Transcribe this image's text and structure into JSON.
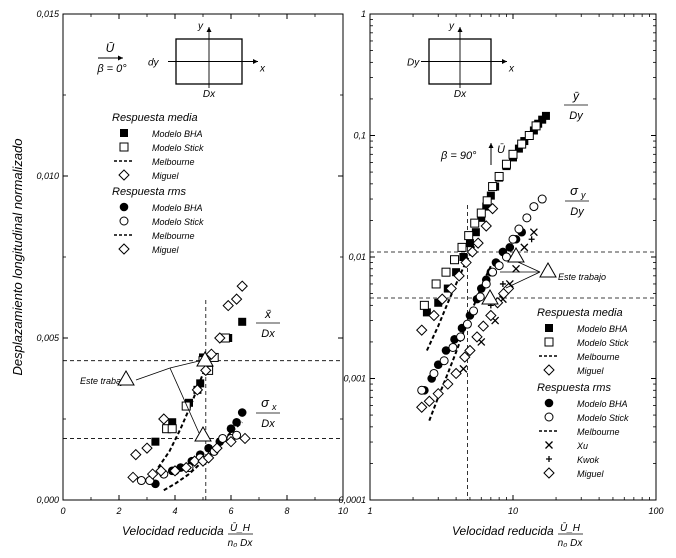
{
  "chart_data": [
    {
      "type": "scatter",
      "xlabel": "Velocidad reducida",
      "xlabel_frac_num": "Ū_H",
      "xlabel_frac_den": "n₀ Dx",
      "ylabel": "Desplazamiento longitudinal normalizado",
      "xlim": [
        0,
        10
      ],
      "ylim": [
        0,
        0.015
      ],
      "x_ticks": [
        "0",
        "2",
        "4",
        "6",
        "8",
        "10"
      ],
      "y_ticks": [
        "0,000",
        "0,005",
        "0,010",
        "0,015"
      ],
      "inset": {
        "wind": "Ū",
        "beta": "β = 0°",
        "dy": "dy",
        "dx": "Dx",
        "x": "x",
        "y": "y"
      },
      "legend_groups": [
        {
          "title": "Respuesta media",
          "entries": [
            {
              "marker": "filled-square",
              "label": "Modelo BHA"
            },
            {
              "marker": "open-square",
              "label": "Modelo Stick"
            },
            {
              "marker": "dashed-line",
              "label": "Melbourne"
            },
            {
              "marker": "open-diamond",
              "label": "Miguel"
            }
          ]
        },
        {
          "title": "Respuesta rms",
          "entries": [
            {
              "marker": "filled-circle",
              "label": "Modelo BHA"
            },
            {
              "marker": "open-circle",
              "label": "Modelo Stick"
            },
            {
              "marker": "dashed-line",
              "label": "Melbourne"
            },
            {
              "marker": "open-diamond",
              "label": "Miguel"
            }
          ]
        }
      ],
      "annotation": "Este trabajo",
      "mean_label": {
        "num": "x̄",
        "den": "Dx"
      },
      "rms_label": {
        "num": "σ",
        "sub": "x",
        "den": "Dx"
      },
      "ref_lines": {
        "x": 5.1,
        "y": [
          0.0043,
          0.0019
        ]
      },
      "series": [
        {
          "group": "mean",
          "marker": "filled-square",
          "name": "Modelo BHA",
          "points": [
            [
              3.3,
              0.0018
            ],
            [
              3.9,
              0.0024
            ],
            [
              4.5,
              0.003
            ],
            [
              4.8,
              0.0034
            ],
            [
              4.9,
              0.0036
            ],
            [
              5.0,
              0.0044
            ],
            [
              5.9,
              0.005
            ],
            [
              6.4,
              0.0055
            ]
          ]
        },
        {
          "group": "mean",
          "marker": "open-square",
          "name": "Modelo Stick",
          "points": [
            [
              3.7,
              0.0022
            ],
            [
              3.9,
              0.0022
            ],
            [
              4.4,
              0.0029
            ],
            [
              5.0,
              0.0043
            ],
            [
              5.2,
              0.004
            ],
            [
              5.4,
              0.0044
            ],
            [
              5.8,
              0.005
            ]
          ]
        },
        {
          "group": "mean",
          "marker": "open-diamond",
          "name": "Miguel",
          "points": [
            [
              3.6,
              0.0025
            ],
            [
              4.8,
              0.0034
            ],
            [
              5.1,
              0.004
            ],
            [
              5.3,
              0.0045
            ],
            [
              5.6,
              0.005
            ],
            [
              5.9,
              0.006
            ],
            [
              6.2,
              0.0062
            ],
            [
              6.4,
              0.0066
            ]
          ]
        },
        {
          "group": "rms",
          "marker": "filled-circle",
          "name": "Modelo BHA",
          "points": [
            [
              3.3,
              0.0005
            ],
            [
              3.9,
              0.0009
            ],
            [
              4.2,
              0.001
            ],
            [
              4.6,
              0.0012
            ],
            [
              4.9,
              0.0014
            ],
            [
              5.2,
              0.0016
            ],
            [
              5.6,
              0.0018
            ],
            [
              6.0,
              0.0022
            ],
            [
              6.2,
              0.0024
            ],
            [
              6.4,
              0.0027
            ]
          ]
        },
        {
          "group": "rms",
          "marker": "open-circle",
          "name": "Modelo Stick",
          "points": [
            [
              2.8,
              0.0006
            ],
            [
              3.1,
              0.0006
            ],
            [
              3.6,
              0.0008
            ],
            [
              4.0,
              0.0009
            ],
            [
              4.5,
              0.001
            ],
            [
              4.9,
              0.0013
            ],
            [
              5.4,
              0.0015
            ],
            [
              5.7,
              0.0019
            ],
            [
              6.0,
              0.0019
            ],
            [
              6.2,
              0.002
            ]
          ]
        },
        {
          "group": "rms",
          "marker": "open-diamond",
          "name": "Miguel",
          "points": [
            [
              2.5,
              0.0007
            ],
            [
              3.2,
              0.0008
            ],
            [
              3.5,
              0.0009
            ],
            [
              4.0,
              0.0009
            ],
            [
              4.4,
              0.001
            ],
            [
              4.7,
              0.0012
            ],
            [
              5.0,
              0.0012
            ],
            [
              5.2,
              0.0013
            ],
            [
              5.5,
              0.0016
            ],
            [
              6.0,
              0.0018
            ],
            [
              6.5,
              0.0019
            ],
            [
              2.6,
              0.0014
            ],
            [
              3.0,
              0.0016
            ]
          ]
        }
      ],
      "curves": [
        {
          "group": "mean",
          "name": "Melbourne",
          "points": [
            [
              3.4,
              0.001
            ],
            [
              3.8,
              0.0015
            ],
            [
              4.2,
              0.0022
            ],
            [
              4.6,
              0.003
            ],
            [
              5.0,
              0.0039
            ],
            [
              5.4,
              0.0046
            ]
          ]
        },
        {
          "group": "rms",
          "name": "Melbourne",
          "points": [
            [
              3.6,
              0.0003
            ],
            [
              4.0,
              0.0005
            ],
            [
              4.5,
              0.0008
            ],
            [
              5.0,
              0.0012
            ],
            [
              5.5,
              0.0016
            ],
            [
              6.0,
              0.0021
            ],
            [
              6.4,
              0.0024
            ]
          ]
        }
      ]
    },
    {
      "type": "scatter",
      "xscale": "log",
      "yscale": "log",
      "xlabel": "Velocidad reducida",
      "xlabel_frac_num": "Ū_H",
      "xlabel_frac_den": "n₀ Dx",
      "xlim": [
        1,
        100
      ],
      "ylim": [
        0.0001,
        1
      ],
      "x_ticks": [
        "1",
        "10",
        "100"
      ],
      "y_ticks": [
        "0,0001",
        "0,001",
        "0,01",
        "0,1",
        "1"
      ],
      "inset": {
        "wind": "Ū",
        "beta": "β = 90°",
        "dy": "Dy",
        "dx": "Dx",
        "x": "x",
        "y": "y"
      },
      "legend_groups": [
        {
          "title": "Respuesta media",
          "entries": [
            {
              "marker": "filled-square",
              "label": "Modelo BHA"
            },
            {
              "marker": "open-square",
              "label": "Modelo Stick"
            },
            {
              "marker": "dashed-line",
              "label": "Melbourne"
            },
            {
              "marker": "open-diamond",
              "label": "Miguel"
            }
          ]
        },
        {
          "title": "Respuesta rms",
          "entries": [
            {
              "marker": "filled-circle",
              "label": "Modelo BHA"
            },
            {
              "marker": "open-circle",
              "label": "Modelo Stick"
            },
            {
              "marker": "dashed-line",
              "label": "Melbourne"
            },
            {
              "marker": "cross",
              "label": "Xu"
            },
            {
              "marker": "plus",
              "label": "Kwok"
            },
            {
              "marker": "open-diamond",
              "label": "Miguel"
            }
          ]
        }
      ],
      "annotation": "Este trabajo",
      "mean_label": {
        "num": "ȳ",
        "den": "Dy"
      },
      "rms_label": {
        "num": "σ",
        "sub": "y",
        "den": "Dy"
      },
      "ref_lines": {
        "x": 4.8,
        "y": [
          0.011,
          0.0046
        ]
      },
      "series": [
        {
          "group": "mean",
          "marker": "filled-square",
          "name": "Modelo BHA",
          "points": [
            [
              2.5,
              0.0035
            ],
            [
              3.0,
              0.0042
            ],
            [
              3.5,
              0.0055
            ],
            [
              4.0,
              0.0075
            ],
            [
              4.5,
              0.01
            ],
            [
              5.0,
              0.013
            ],
            [
              5.5,
              0.016
            ],
            [
              6.0,
              0.021
            ],
            [
              6.5,
              0.026
            ],
            [
              7.0,
              0.032
            ],
            [
              7.5,
              0.038
            ],
            [
              8.0,
              0.045
            ],
            [
              9.0,
              0.056
            ],
            [
              10.0,
              0.066
            ],
            [
              11.0,
              0.078
            ],
            [
              12.0,
              0.09
            ],
            [
              13.0,
              0.1
            ],
            [
              14.0,
              0.11
            ],
            [
              15.0,
              0.125
            ],
            [
              16.0,
              0.135
            ],
            [
              17.0,
              0.145
            ]
          ]
        },
        {
          "group": "mean",
          "marker": "open-square",
          "name": "Modelo Stick",
          "points": [
            [
              2.4,
              0.004
            ],
            [
              2.9,
              0.006
            ],
            [
              3.4,
              0.0075
            ],
            [
              3.9,
              0.0095
            ],
            [
              4.4,
              0.012
            ],
            [
              4.9,
              0.015
            ],
            [
              5.4,
              0.019
            ],
            [
              6.0,
              0.023
            ],
            [
              6.6,
              0.029
            ],
            [
              7.2,
              0.038
            ],
            [
              8.0,
              0.046
            ],
            [
              9.0,
              0.058
            ],
            [
              10.0,
              0.07
            ],
            [
              11.5,
              0.085
            ],
            [
              13.0,
              0.1
            ],
            [
              14.5,
              0.12
            ]
          ]
        },
        {
          "group": "mean",
          "marker": "open-diamond",
          "name": "Miguel",
          "points": [
            [
              2.3,
              0.0025
            ],
            [
              2.8,
              0.0033
            ],
            [
              3.2,
              0.0045
            ],
            [
              3.7,
              0.0055
            ],
            [
              4.2,
              0.007
            ],
            [
              4.7,
              0.009
            ],
            [
              5.2,
              0.011
            ],
            [
              5.7,
              0.013
            ],
            [
              6.5,
              0.018
            ],
            [
              7.2,
              0.025
            ]
          ]
        },
        {
          "group": "rms",
          "marker": "filled-circle",
          "name": "Modelo BHA",
          "points": [
            [
              2.4,
              0.0008
            ],
            [
              2.7,
              0.001
            ],
            [
              3.0,
              0.0013
            ],
            [
              3.4,
              0.0017
            ],
            [
              3.9,
              0.0021
            ],
            [
              4.4,
              0.0026
            ],
            [
              5.0,
              0.0033
            ],
            [
              5.6,
              0.0045
            ],
            [
              6.0,
              0.0055
            ],
            [
              6.5,
              0.0065
            ],
            [
              7.0,
              0.0075
            ],
            [
              7.6,
              0.009
            ],
            [
              8.5,
              0.011
            ],
            [
              9.5,
              0.012
            ],
            [
              10.5,
              0.014
            ],
            [
              11.5,
              0.016
            ]
          ]
        },
        {
          "group": "rms",
          "marker": "open-circle",
          "name": "Modelo Stick",
          "points": [
            [
              2.3,
              0.0008
            ],
            [
              2.8,
              0.0011
            ],
            [
              3.3,
              0.0014
            ],
            [
              3.8,
              0.0018
            ],
            [
              4.3,
              0.0022
            ],
            [
              4.8,
              0.0028
            ],
            [
              5.3,
              0.0036
            ],
            [
              5.9,
              0.0047
            ],
            [
              6.5,
              0.006
            ],
            [
              7.2,
              0.0075
            ],
            [
              8.0,
              0.0085
            ],
            [
              9.0,
              0.01
            ],
            [
              10.0,
              0.014
            ],
            [
              11.0,
              0.017
            ],
            [
              12.5,
              0.021
            ],
            [
              14.0,
              0.026
            ],
            [
              16.0,
              0.03
            ]
          ]
        },
        {
          "group": "rms",
          "marker": "cross",
          "name": "Xu",
          "points": [
            [
              4.5,
              0.0012
            ],
            [
              6.0,
              0.002
            ],
            [
              7.5,
              0.003
            ],
            [
              8.5,
              0.0045
            ],
            [
              9.5,
              0.006
            ],
            [
              10.5,
              0.008
            ],
            [
              12.0,
              0.012
            ],
            [
              14.0,
              0.016
            ]
          ]
        },
        {
          "group": "rms",
          "marker": "plus",
          "name": "Kwok",
          "points": [
            [
              7.0,
              0.004
            ],
            [
              8.5,
              0.006
            ],
            [
              11.0,
              0.0095
            ],
            [
              13.5,
              0.014
            ]
          ]
        },
        {
          "group": "rms",
          "marker": "open-diamond",
          "name": "Miguel",
          "points": [
            [
              2.3,
              0.00058
            ],
            [
              2.6,
              0.00065
            ],
            [
              3.0,
              0.00075
            ],
            [
              3.5,
              0.0009
            ],
            [
              4.0,
              0.0011
            ],
            [
              4.6,
              0.0015
            ],
            [
              5.0,
              0.0017
            ],
            [
              5.6,
              0.0022
            ],
            [
              6.2,
              0.0027
            ],
            [
              7.0,
              0.0033
            ],
            [
              7.8,
              0.0042
            ],
            [
              8.6,
              0.005
            ],
            [
              9.3,
              0.0055
            ]
          ]
        }
      ],
      "curves": [
        {
          "group": "mean",
          "name": "Melbourne",
          "points": [
            [
              2.5,
              0.0017
            ],
            [
              3.0,
              0.0027
            ],
            [
              3.5,
              0.0042
            ],
            [
              4.0,
              0.006
            ],
            [
              4.5,
              0.0082
            ],
            [
              5.0,
              0.0105
            ],
            [
              5.5,
              0.013
            ]
          ]
        },
        {
          "group": "rms",
          "name": "Melbourne",
          "points": [
            [
              2.6,
              0.00045
            ],
            [
              3.0,
              0.0007
            ],
            [
              3.5,
              0.0011
            ],
            [
              4.0,
              0.00165
            ],
            [
              4.5,
              0.0024
            ],
            [
              5.0,
              0.0033
            ],
            [
              5.5,
              0.0044
            ],
            [
              6.0,
              0.0056
            ],
            [
              6.5,
              0.007
            ],
            [
              7.0,
              0.0084
            ]
          ]
        }
      ]
    }
  ]
}
